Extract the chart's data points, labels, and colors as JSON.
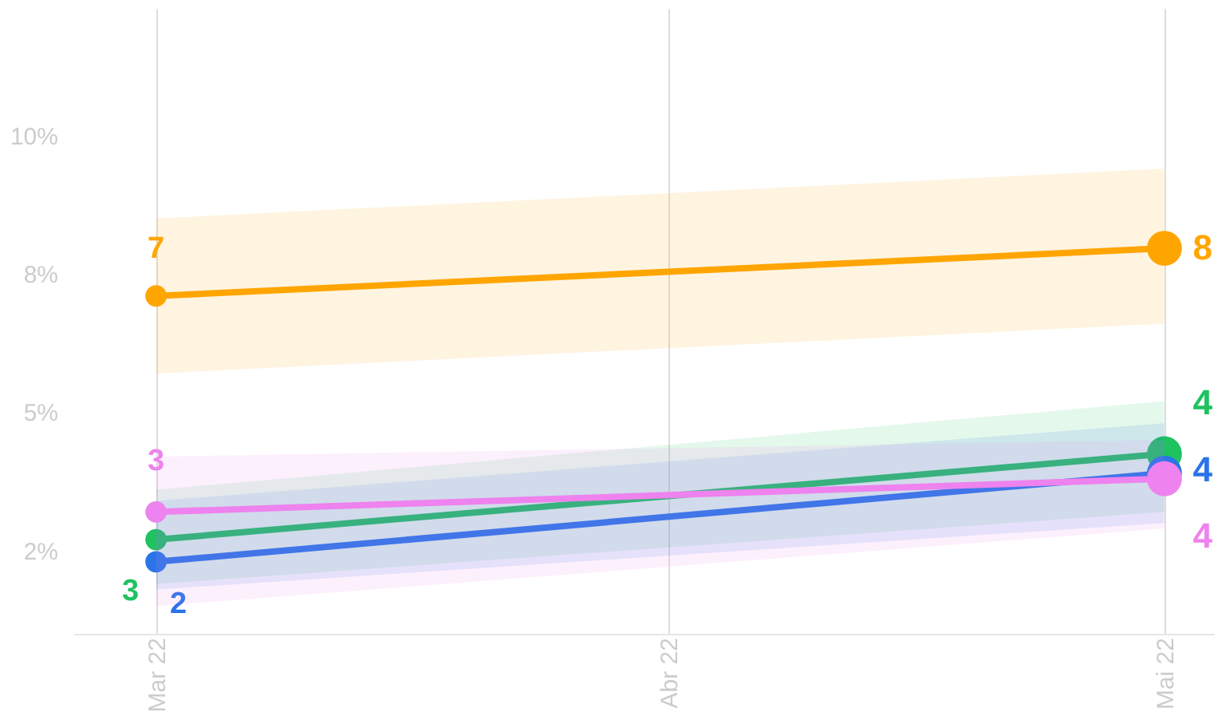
{
  "chart_data": {
    "type": "line",
    "x": [
      "2022-03",
      "2022-05"
    ],
    "xlim": [
      "2022-02-24",
      "2022-05-04"
    ],
    "xticks": [
      {
        "value": "2022-03",
        "label": "Mar 22"
      },
      {
        "value": "2022-04",
        "label": "Abr 22"
      },
      {
        "value": "2022-05",
        "label": "Mai 22"
      }
    ],
    "ylim": [
      1,
      12.3
    ],
    "yticks": [
      {
        "value": 2.5,
        "label": "2%"
      },
      {
        "value": 5,
        "label": "5%"
      },
      {
        "value": 7.5,
        "label": "8%"
      },
      {
        "value": 10,
        "label": "10%"
      }
    ],
    "grid": "x",
    "legend": false,
    "marker": "circle",
    "line_style": "solid",
    "series": [
      {
        "color": "#ffa500",
        "values": [
          7.1,
          7.96
        ],
        "lower": [
          5.7,
          6.6
        ],
        "upper": [
          8.5,
          9.4
        ],
        "value_labels": [
          "7",
          "8"
        ]
      },
      {
        "color": "#1ec25f",
        "values": [
          2.7,
          4.25
        ],
        "lower": [
          1.9,
          3.2
        ],
        "upper": [
          3.6,
          5.2
        ],
        "value_labels": [
          "3",
          "4"
        ]
      },
      {
        "color": "#2a74e8",
        "values": [
          2.3,
          3.9
        ],
        "lower": [
          1.8,
          3.0
        ],
        "upper": [
          3.4,
          4.8
        ],
        "value_labels": [
          "2",
          "4"
        ]
      },
      {
        "color": "#ee82ee",
        "values": [
          3.2,
          3.8
        ],
        "lower": [
          1.5,
          2.9
        ],
        "upper": [
          4.2,
          4.5
        ],
        "value_labels": [
          "3",
          "4"
        ]
      }
    ]
  }
}
